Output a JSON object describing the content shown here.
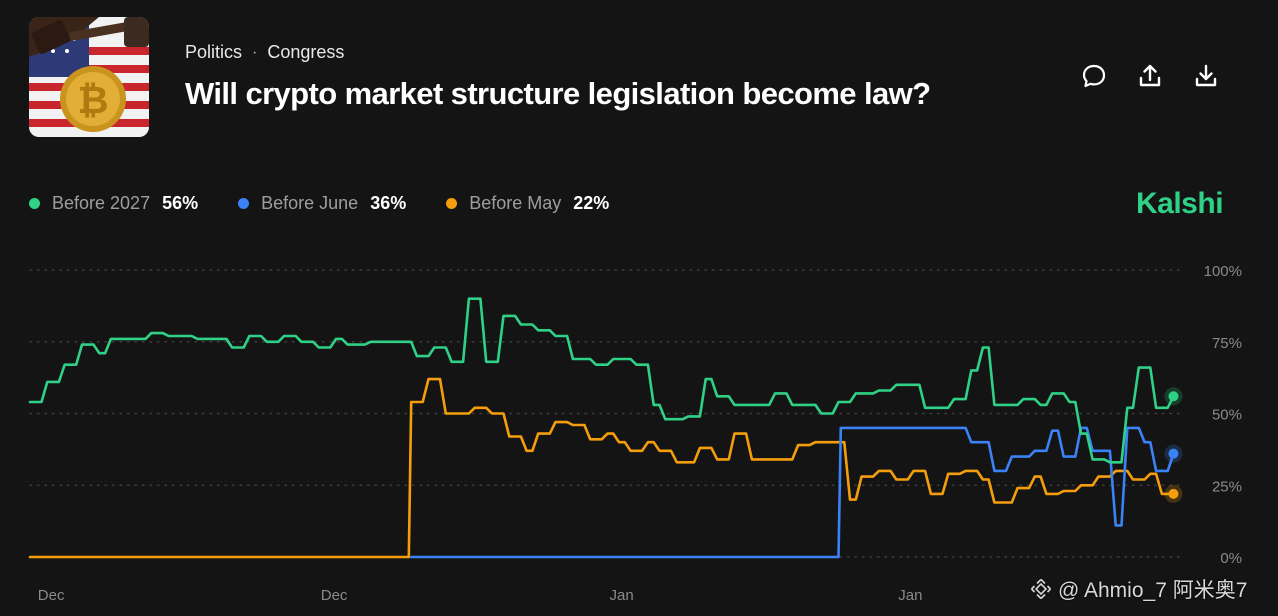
{
  "header": {
    "breadcrumb": [
      "Politics",
      "Congress"
    ],
    "separator": "·",
    "title": "Will crypto market structure legislation become law?",
    "actions": [
      "comment-icon",
      "share-icon",
      "download-icon"
    ]
  },
  "brand": {
    "name": "Kalshi",
    "color": "#2fd186"
  },
  "watermark": {
    "text": "@ Ahmio_7 阿米奥7"
  },
  "legend": [
    {
      "label": "Before 2027",
      "value": "56%",
      "color": "#2fd186"
    },
    {
      "label": "Before June",
      "value": "36%",
      "color": "#3b82f6"
    },
    {
      "label": "Before May",
      "value": "22%",
      "color": "#f59e0b"
    }
  ],
  "chart_data": {
    "type": "line",
    "ylim": [
      0,
      100
    ],
    "y_ticks": [
      0,
      25,
      50,
      75,
      100
    ],
    "y_tick_labels": [
      "0%",
      "25%",
      "50%",
      "75%",
      "100%"
    ],
    "x_range": [
      0,
      100
    ],
    "x_tick_positions": [
      0.5,
      25,
      50,
      75
    ],
    "x_tick_labels": [
      "Dec",
      "Dec",
      "Jan",
      "Jan"
    ],
    "grid": true,
    "series": [
      {
        "name": "Before 2027",
        "color": "#2fd186",
        "points": [
          [
            0,
            54
          ],
          [
            1,
            54
          ],
          [
            1.5,
            61
          ],
          [
            2.5,
            61
          ],
          [
            3,
            67
          ],
          [
            4,
            67
          ],
          [
            4.5,
            74
          ],
          [
            5.5,
            74
          ],
          [
            6,
            71
          ],
          [
            6.5,
            71
          ],
          [
            7,
            76
          ],
          [
            10,
            76
          ],
          [
            10.5,
            78
          ],
          [
            11.5,
            78
          ],
          [
            12,
            77
          ],
          [
            14,
            77
          ],
          [
            14.5,
            76
          ],
          [
            17,
            76
          ],
          [
            17.5,
            73
          ],
          [
            18.5,
            73
          ],
          [
            19,
            77
          ],
          [
            20,
            77
          ],
          [
            20.5,
            75
          ],
          [
            21.5,
            75
          ],
          [
            22,
            77
          ],
          [
            23,
            77
          ],
          [
            23.5,
            75
          ],
          [
            24.5,
            75
          ],
          [
            25,
            73
          ],
          [
            26,
            73
          ],
          [
            26.5,
            76
          ],
          [
            27,
            76
          ],
          [
            27.5,
            74
          ],
          [
            29,
            74
          ],
          [
            29.5,
            75
          ],
          [
            33,
            75
          ],
          [
            33.5,
            70
          ],
          [
            34.5,
            70
          ],
          [
            35,
            73
          ],
          [
            36,
            73
          ],
          [
            36.5,
            68
          ],
          [
            37.5,
            68
          ],
          [
            38,
            90
          ],
          [
            39,
            90
          ],
          [
            39.5,
            68
          ],
          [
            40.5,
            68
          ],
          [
            41,
            84
          ],
          [
            42,
            84
          ],
          [
            42.5,
            81
          ],
          [
            43.5,
            81
          ],
          [
            44,
            79
          ],
          [
            45,
            79
          ],
          [
            45.5,
            77
          ],
          [
            46.5,
            77
          ],
          [
            47,
            69
          ],
          [
            48.5,
            69
          ],
          [
            49,
            67
          ],
          [
            50,
            67
          ],
          [
            50.5,
            69
          ],
          [
            52,
            69
          ],
          [
            52.5,
            67
          ],
          [
            53.5,
            67
          ],
          [
            54,
            53
          ],
          [
            54.5,
            53
          ],
          [
            55,
            48
          ],
          [
            56.5,
            48
          ],
          [
            57,
            49
          ],
          [
            58,
            49
          ],
          [
            58.5,
            62
          ],
          [
            59,
            62
          ],
          [
            59.5,
            56
          ],
          [
            60.5,
            56
          ],
          [
            61,
            53
          ],
          [
            64,
            53
          ],
          [
            64.5,
            57
          ],
          [
            65.5,
            57
          ],
          [
            66,
            53
          ],
          [
            68,
            53
          ],
          [
            68.5,
            50
          ],
          [
            69.5,
            50
          ],
          [
            70,
            54
          ],
          [
            71,
            54
          ],
          [
            71.5,
            57
          ],
          [
            73,
            57
          ],
          [
            73.5,
            58
          ],
          [
            74.5,
            58
          ],
          [
            75,
            60
          ],
          [
            77,
            60
          ],
          [
            77.5,
            52
          ],
          [
            79.5,
            52
          ],
          [
            80,
            55
          ],
          [
            81,
            55
          ],
          [
            81.5,
            65
          ],
          [
            82,
            65
          ],
          [
            82.5,
            73
          ],
          [
            83,
            73
          ],
          [
            83.5,
            53
          ],
          [
            85.5,
            53
          ],
          [
            86,
            55
          ],
          [
            87,
            55
          ],
          [
            87.5,
            53
          ],
          [
            88,
            53
          ],
          [
            88.5,
            57
          ],
          [
            89.5,
            57
          ],
          [
            90,
            54
          ],
          [
            90.5,
            54
          ],
          [
            91,
            43
          ],
          [
            91.5,
            43
          ],
          [
            92,
            34
          ],
          [
            93,
            34
          ],
          [
            93.5,
            33
          ],
          [
            94.5,
            33
          ],
          [
            95,
            52
          ],
          [
            95.5,
            52
          ],
          [
            96,
            66
          ],
          [
            97,
            66
          ],
          [
            97.5,
            52
          ],
          [
            98.5,
            52
          ],
          [
            99,
            56
          ]
        ]
      },
      {
        "name": "Before June",
        "color": "#3b82f6",
        "points": [
          [
            33,
            0
          ],
          [
            70,
            0
          ],
          [
            70.2,
            45
          ],
          [
            81,
            45
          ],
          [
            81.5,
            40
          ],
          [
            83,
            40
          ],
          [
            83.5,
            30
          ],
          [
            84.5,
            30
          ],
          [
            85,
            35
          ],
          [
            86.5,
            35
          ],
          [
            87,
            37
          ],
          [
            88,
            37
          ],
          [
            88.5,
            44
          ],
          [
            89,
            44
          ],
          [
            89.5,
            35
          ],
          [
            90.5,
            35
          ],
          [
            91,
            45
          ],
          [
            91.5,
            45
          ],
          [
            92,
            37
          ],
          [
            93.5,
            37
          ],
          [
            94,
            11
          ],
          [
            94.5,
            11
          ],
          [
            95,
            45
          ],
          [
            96,
            45
          ],
          [
            96.5,
            40
          ],
          [
            97,
            40
          ],
          [
            97.5,
            30
          ],
          [
            98.5,
            30
          ],
          [
            99,
            36
          ]
        ]
      },
      {
        "name": "Before May",
        "color": "#f59e0b",
        "points": [
          [
            0,
            0
          ],
          [
            32.8,
            0
          ],
          [
            33,
            54
          ],
          [
            34,
            54
          ],
          [
            34.5,
            62
          ],
          [
            35.5,
            62
          ],
          [
            36,
            50
          ],
          [
            38,
            50
          ],
          [
            38.5,
            52
          ],
          [
            39.5,
            52
          ],
          [
            40,
            50
          ],
          [
            41,
            50
          ],
          [
            41.5,
            42
          ],
          [
            42.5,
            42
          ],
          [
            43,
            37
          ],
          [
            43.5,
            37
          ],
          [
            44,
            43
          ],
          [
            45,
            43
          ],
          [
            45.5,
            47
          ],
          [
            46.5,
            47
          ],
          [
            47,
            46
          ],
          [
            48,
            46
          ],
          [
            48.5,
            41
          ],
          [
            49.5,
            41
          ],
          [
            50,
            43
          ],
          [
            50.5,
            43
          ],
          [
            51,
            40
          ],
          [
            51.5,
            40
          ],
          [
            52,
            37
          ],
          [
            53,
            37
          ],
          [
            53.5,
            40
          ],
          [
            54,
            40
          ],
          [
            54.5,
            37
          ],
          [
            55.5,
            37
          ],
          [
            56,
            33
          ],
          [
            57.5,
            33
          ],
          [
            58,
            38
          ],
          [
            59,
            38
          ],
          [
            59.5,
            34
          ],
          [
            60.5,
            34
          ],
          [
            61,
            43
          ],
          [
            62,
            43
          ],
          [
            62.5,
            34
          ],
          [
            66,
            34
          ],
          [
            66.5,
            39
          ],
          [
            67.5,
            39
          ],
          [
            68,
            40
          ],
          [
            70.5,
            40
          ],
          [
            71,
            20
          ],
          [
            71.5,
            20
          ],
          [
            72,
            28
          ],
          [
            73,
            28
          ],
          [
            73.5,
            30
          ],
          [
            74.5,
            30
          ],
          [
            75,
            27
          ],
          [
            76,
            27
          ],
          [
            76.5,
            30
          ],
          [
            77.5,
            30
          ],
          [
            78,
            22
          ],
          [
            79,
            22
          ],
          [
            79.5,
            29
          ],
          [
            80.5,
            29
          ],
          [
            81,
            30
          ],
          [
            82,
            30
          ],
          [
            82.5,
            27
          ],
          [
            83,
            27
          ],
          [
            83.5,
            19
          ],
          [
            85,
            19
          ],
          [
            85.5,
            24
          ],
          [
            86.5,
            24
          ],
          [
            87,
            28
          ],
          [
            87.5,
            28
          ],
          [
            88,
            22
          ],
          [
            89,
            22
          ],
          [
            89.5,
            23
          ],
          [
            90.5,
            23
          ],
          [
            91,
            25
          ],
          [
            92,
            25
          ],
          [
            92.5,
            28
          ],
          [
            93.5,
            28
          ],
          [
            94,
            30
          ],
          [
            95,
            30
          ],
          [
            95.5,
            27
          ],
          [
            96.5,
            27
          ],
          [
            97,
            29
          ],
          [
            97.5,
            29
          ],
          [
            98,
            22
          ],
          [
            99,
            22
          ]
        ]
      }
    ]
  }
}
